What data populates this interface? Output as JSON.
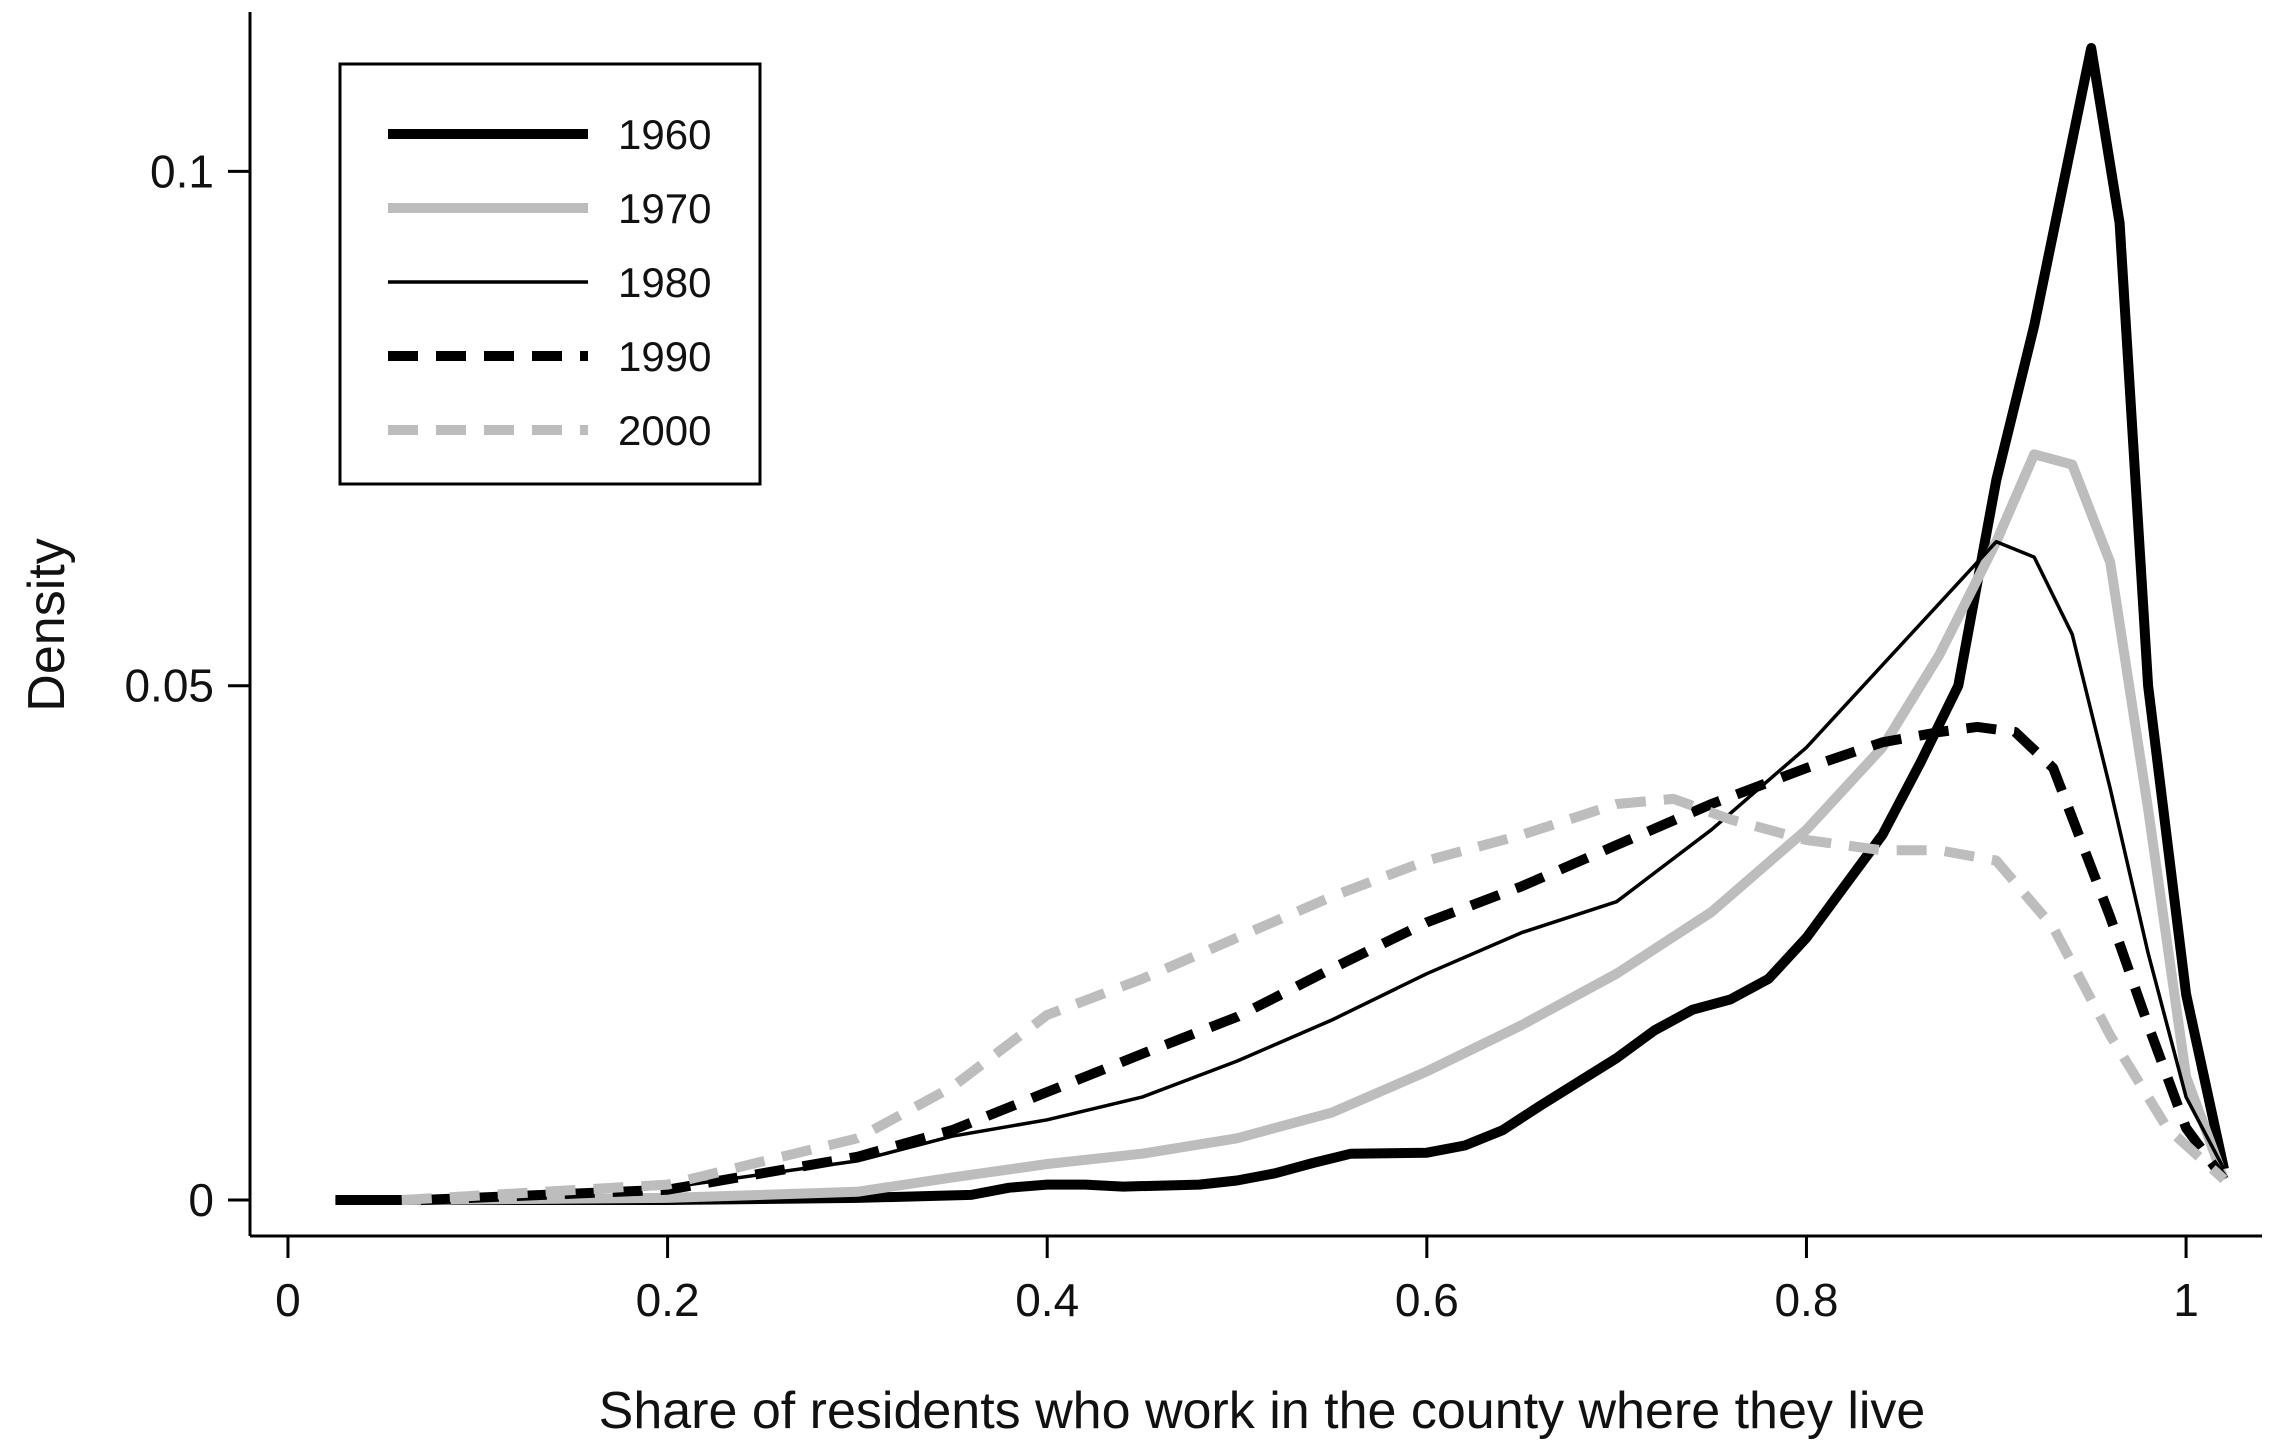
{
  "chart_data": {
    "type": "line",
    "title": "",
    "xlabel": "Share of residents who work in the county where they live",
    "ylabel": "Density",
    "xlim": [
      -0.02,
      1.04
    ],
    "ylim": [
      -0.0035,
      0.1155
    ],
    "x_ticks": [
      0,
      0.2,
      0.4,
      0.6,
      0.8,
      1
    ],
    "x_tick_labels": [
      "0",
      "0.2",
      "0.4",
      "0.6",
      "0.8",
      "1"
    ],
    "y_ticks": [
      0,
      0.05,
      0.1
    ],
    "y_tick_labels": [
      "0",
      "0.05",
      "0.1"
    ],
    "grid": false,
    "legend_position": "top-left",
    "series": [
      {
        "name": "1960",
        "color": "#000000",
        "style": "solid-thick",
        "x": [
          0.025,
          0.1,
          0.2,
          0.3,
          0.36,
          0.38,
          0.4,
          0.42,
          0.44,
          0.48,
          0.5,
          0.52,
          0.54,
          0.56,
          0.6,
          0.62,
          0.64,
          0.66,
          0.68,
          0.7,
          0.72,
          0.74,
          0.76,
          0.78,
          0.8,
          0.82,
          0.84,
          0.86,
          0.88,
          0.9,
          0.92,
          0.94,
          0.95,
          0.965,
          0.98,
          1.0,
          1.02
        ],
        "values": [
          0.0,
          0.0,
          0.0,
          0.0002,
          0.0005,
          0.0012,
          0.0015,
          0.0015,
          0.0013,
          0.0015,
          0.0019,
          0.0026,
          0.0036,
          0.0045,
          0.0046,
          0.0053,
          0.0068,
          0.0092,
          0.0115,
          0.0138,
          0.0165,
          0.0185,
          0.0195,
          0.0215,
          0.0255,
          0.0305,
          0.0355,
          0.0425,
          0.05,
          0.07,
          0.085,
          0.103,
          0.112,
          0.095,
          0.05,
          0.02,
          0.003
        ]
      },
      {
        "name": "1970",
        "color": "#bdbdbd",
        "style": "solid-thick",
        "x": [
          0.06,
          0.2,
          0.3,
          0.35,
          0.4,
          0.45,
          0.5,
          0.55,
          0.6,
          0.65,
          0.7,
          0.75,
          0.8,
          0.84,
          0.87,
          0.9,
          0.92,
          0.94,
          0.96,
          0.98,
          1.0,
          1.02
        ],
        "values": [
          0.0,
          0.0002,
          0.0008,
          0.0022,
          0.0035,
          0.0045,
          0.006,
          0.0085,
          0.0125,
          0.017,
          0.022,
          0.028,
          0.036,
          0.044,
          0.053,
          0.064,
          0.0725,
          0.0715,
          0.062,
          0.038,
          0.012,
          0.002
        ]
      },
      {
        "name": "1980",
        "color": "#000000",
        "style": "solid-thin",
        "x": [
          0.03,
          0.1,
          0.2,
          0.3,
          0.35,
          0.4,
          0.45,
          0.5,
          0.55,
          0.6,
          0.65,
          0.7,
          0.75,
          0.8,
          0.84,
          0.87,
          0.9,
          0.92,
          0.94,
          0.96,
          0.98,
          1.0,
          1.02
        ],
        "values": [
          0.0,
          0.0002,
          0.0012,
          0.0038,
          0.0062,
          0.0078,
          0.01,
          0.0135,
          0.0175,
          0.022,
          0.026,
          0.029,
          0.036,
          0.044,
          0.052,
          0.058,
          0.064,
          0.0625,
          0.055,
          0.04,
          0.024,
          0.01,
          0.003
        ]
      },
      {
        "name": "1990",
        "color": "#000000",
        "style": "dashed-thick",
        "x": [
          0.07,
          0.2,
          0.3,
          0.35,
          0.4,
          0.45,
          0.5,
          0.55,
          0.6,
          0.65,
          0.7,
          0.75,
          0.8,
          0.84,
          0.87,
          0.89,
          0.91,
          0.93,
          0.96,
          0.98,
          1.0,
          1.02
        ],
        "values": [
          0.0,
          0.001,
          0.0042,
          0.0068,
          0.0105,
          0.0142,
          0.0178,
          0.0225,
          0.027,
          0.0305,
          0.0345,
          0.0385,
          0.042,
          0.0445,
          0.0455,
          0.046,
          0.0455,
          0.042,
          0.0275,
          0.017,
          0.007,
          0.002
        ]
      },
      {
        "name": "2000",
        "color": "#bdbdbd",
        "style": "dashed-thick",
        "x": [
          0.06,
          0.2,
          0.3,
          0.35,
          0.4,
          0.45,
          0.5,
          0.55,
          0.6,
          0.65,
          0.7,
          0.73,
          0.76,
          0.8,
          0.84,
          0.87,
          0.9,
          0.93,
          0.96,
          0.99,
          1.02
        ],
        "values": [
          0.0,
          0.0015,
          0.006,
          0.011,
          0.018,
          0.0215,
          0.0255,
          0.0295,
          0.033,
          0.0355,
          0.0385,
          0.039,
          0.037,
          0.035,
          0.034,
          0.034,
          0.033,
          0.0265,
          0.016,
          0.007,
          0.002
        ]
      }
    ]
  }
}
